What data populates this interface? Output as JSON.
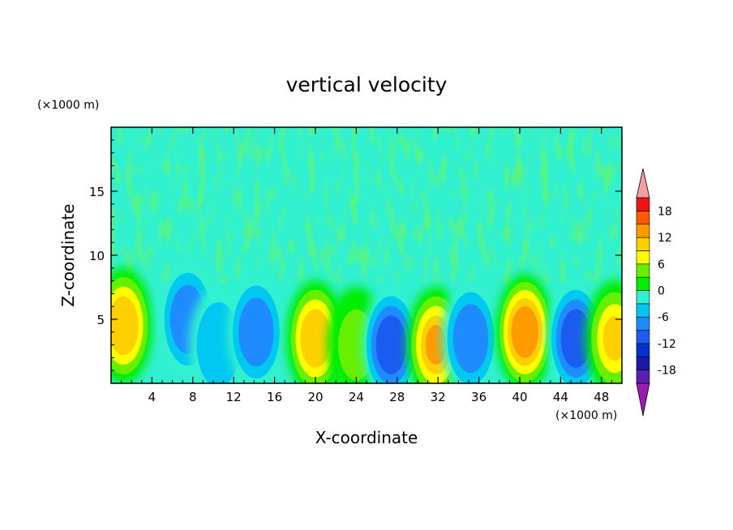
{
  "chart_data": {
    "type": "heatmap",
    "title": "vertical velocity",
    "xlabel": "X-coordinate",
    "ylabel": "Z-coordinate",
    "x_unit_label": "(×1000 m)",
    "y_unit_label": "(×1000 m)",
    "xlim": [
      0,
      50
    ],
    "ylim": [
      0,
      20
    ],
    "x_ticks": [
      4,
      8,
      12,
      16,
      20,
      24,
      28,
      32,
      36,
      40,
      44,
      48
    ],
    "y_ticks": [
      5,
      10,
      15
    ],
    "colorbar": {
      "tick_labels": [
        "18",
        "12",
        "6",
        "0",
        "-6",
        "-12",
        "-18"
      ],
      "tick_values": [
        18,
        12,
        6,
        0,
        -6,
        -12,
        -18
      ],
      "levels": [
        -21,
        -18,
        -15,
        -12,
        -9,
        -6,
        -3,
        0,
        3,
        6,
        9,
        12,
        15,
        18,
        21
      ],
      "colors": [
        "#9b1ab0",
        "#5a1fb3",
        "#1a1aa8",
        "#0033cc",
        "#1a5cf0",
        "#1e8cff",
        "#00c8f0",
        "#30f0d0",
        "#00ee00",
        "#66f000",
        "#ffff00",
        "#ffd000",
        "#ff9a00",
        "#ff5a00",
        "#f01414",
        "#f4a0a0"
      ],
      "extend": "both"
    },
    "cells": [
      {
        "x": 1.2,
        "z": 4.5,
        "w": 10
      },
      {
        "x": 7.5,
        "z": 5.0,
        "w": -9
      },
      {
        "x": 10.5,
        "z": 3.0,
        "w": -5
      },
      {
        "x": 14.2,
        "z": 4.0,
        "w": -8
      },
      {
        "x": 20.0,
        "z": 3.5,
        "w": 11
      },
      {
        "x": 24.0,
        "z": 3.0,
        "w": 3
      },
      {
        "x": 27.4,
        "z": 3.0,
        "w": -11
      },
      {
        "x": 31.8,
        "z": 3.0,
        "w": 12
      },
      {
        "x": 35.2,
        "z": 3.5,
        "w": -7
      },
      {
        "x": 40.5,
        "z": 4.0,
        "w": 13
      },
      {
        "x": 45.5,
        "z": 3.5,
        "w": -10
      },
      {
        "x": 49.3,
        "z": 3.5,
        "w": 9
      }
    ]
  }
}
